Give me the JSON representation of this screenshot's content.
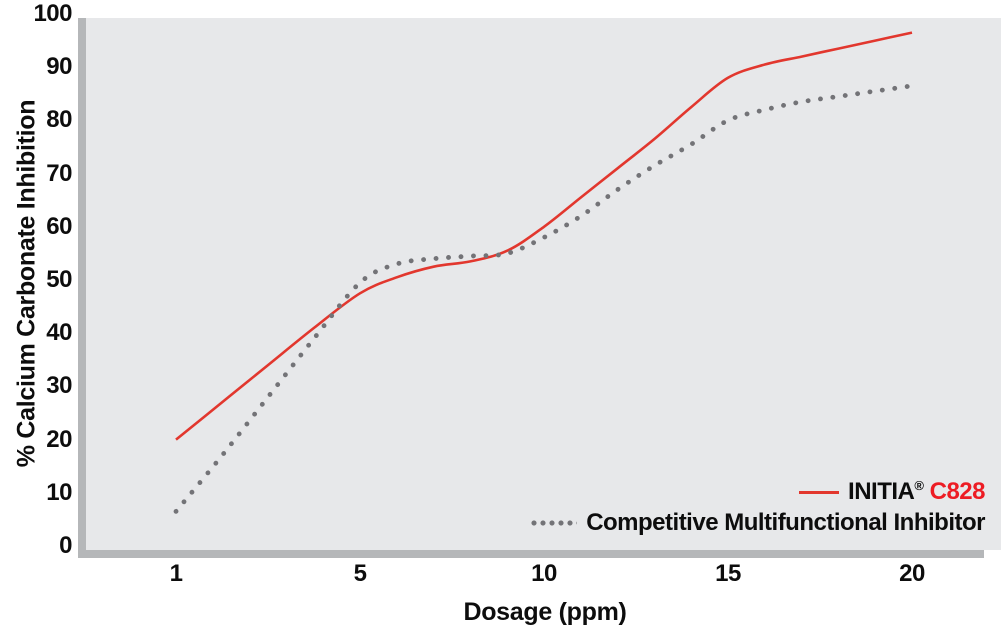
{
  "colors": {
    "line_red": "#e2372e",
    "legend_red_text": "#ed1c24",
    "competitor_dot_gray": "#737377",
    "plot_background": "#e7e8ea",
    "axis_bar_gray": "#b5b7b9",
    "text": "#0d0d0d",
    "page_background": "#ffffff"
  },
  "legend": {
    "initia": {
      "brand": "INITIA",
      "registered": "®",
      "product": "C828"
    },
    "competitive": {
      "label": "Competitive Multifunctional Inhibitor"
    }
  },
  "chart_data": {
    "type": "line",
    "title": "",
    "xlabel": "Dosage (ppm)",
    "ylabel": "% Calcium Carbonate Inhibition",
    "x": [
      1,
      2,
      3,
      4,
      5,
      6,
      7,
      8,
      9,
      10,
      11,
      12,
      13,
      14,
      15,
      16,
      17,
      18,
      19,
      20
    ],
    "series": [
      {
        "name": "INITIA® C828",
        "style": "solid",
        "color": "#e2372e",
        "values": [
          20,
          27,
          34,
          41,
          47.5,
          50.5,
          52.5,
          53.5,
          55.5,
          60,
          65.5,
          71,
          76.5,
          82.5,
          88,
          90.5,
          92,
          93.5,
          95,
          96.5
        ]
      },
      {
        "name": "Competitive Multifunctional Inhibitor",
        "style": "dotted",
        "color": "#737377",
        "values": [
          6.5,
          17,
          28,
          39,
          49.5,
          53,
          54,
          54.5,
          55,
          58,
          62,
          67,
          71.5,
          75.5,
          80,
          82,
          83.5,
          84.5,
          85.5,
          86.5
        ]
      }
    ],
    "x_ticks": [
      1,
      5,
      10,
      15,
      20
    ],
    "x_tick_labels": [
      "1",
      "5",
      "10",
      "15",
      "20"
    ],
    "x_axis_note": "tick values 1,5,10,15,20 are equally spaced (non-linear scale)",
    "y_ticks": [
      0,
      10,
      20,
      30,
      40,
      50,
      60,
      70,
      80,
      90,
      100
    ],
    "ylim": [
      0,
      100
    ],
    "grid": false,
    "legend_position": "bottom-right-inside"
  }
}
